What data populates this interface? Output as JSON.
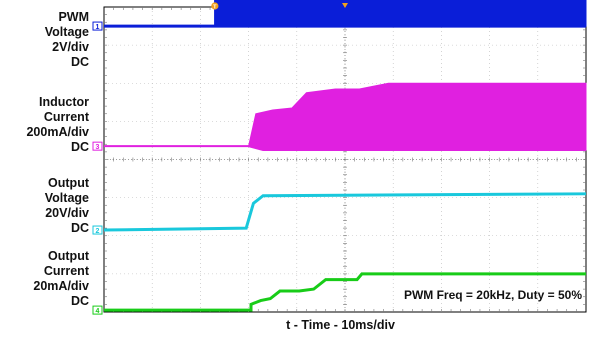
{
  "chart_data": {
    "type": "line",
    "title": "",
    "xlabel": "t - Time - 10ms/div",
    "annotation": "PWM Freq = 20kHz, Duty = 50%",
    "x_divisions": 10,
    "y_divisions": 8,
    "grid": true,
    "trigger_marker": "T",
    "channels": [
      {
        "id": "1",
        "label_lines": [
          "PWM",
          "Voltage",
          "2V/div",
          "DC"
        ],
        "color": "#0a1ed8",
        "style": "pwm",
        "unit": "div",
        "points": [
          [
            0,
            7.5
          ],
          [
            2.3,
            7.5
          ],
          [
            2.3,
            7.5
          ],
          [
            10,
            7.5
          ]
        ],
        "band_low": [
          [
            2.3,
            7.5
          ],
          [
            10,
            7.5
          ]
        ],
        "band_high": [
          [
            2.3,
            8.5
          ],
          [
            10,
            8.5
          ]
        ]
      },
      {
        "id": "3",
        "label_lines": [
          "Inductor",
          "Current",
          "200mA/div",
          "DC"
        ],
        "color": "#e020e0",
        "style": "band",
        "unit": "div",
        "band_low": [
          [
            0,
            4.35
          ],
          [
            3.0,
            4.35
          ],
          [
            3.3,
            4.25
          ],
          [
            10,
            4.25
          ]
        ],
        "band_high": [
          [
            0,
            4.35
          ],
          [
            3.0,
            4.35
          ],
          [
            3.15,
            5.2
          ],
          [
            3.5,
            5.3
          ],
          [
            3.9,
            5.35
          ],
          [
            4.2,
            5.75
          ],
          [
            4.8,
            5.85
          ],
          [
            5.3,
            5.85
          ],
          [
            5.9,
            6.0
          ],
          [
            10,
            6.0
          ]
        ]
      },
      {
        "id": "2",
        "label_lines": [
          "Output",
          "Voltage",
          "20V/div",
          "DC"
        ],
        "color": "#19c8dc",
        "style": "line",
        "unit": "div",
        "points": [
          [
            0,
            2.15
          ],
          [
            2.95,
            2.2
          ],
          [
            3.1,
            2.85
          ],
          [
            3.3,
            3.05
          ],
          [
            10,
            3.1
          ]
        ]
      },
      {
        "id": "4",
        "label_lines": [
          "Output",
          "Current",
          "20mA/div",
          "DC"
        ],
        "color": "#18cc18",
        "style": "line",
        "unit": "div",
        "points": [
          [
            0,
            0.05
          ],
          [
            3.05,
            0.05
          ],
          [
            3.05,
            0.2
          ],
          [
            3.25,
            0.3
          ],
          [
            3.45,
            0.35
          ],
          [
            3.65,
            0.55
          ],
          [
            4.05,
            0.55
          ],
          [
            4.35,
            0.6
          ],
          [
            4.6,
            0.85
          ],
          [
            5.25,
            0.85
          ],
          [
            5.35,
            1.0
          ],
          [
            10,
            1.0
          ]
        ]
      }
    ]
  }
}
